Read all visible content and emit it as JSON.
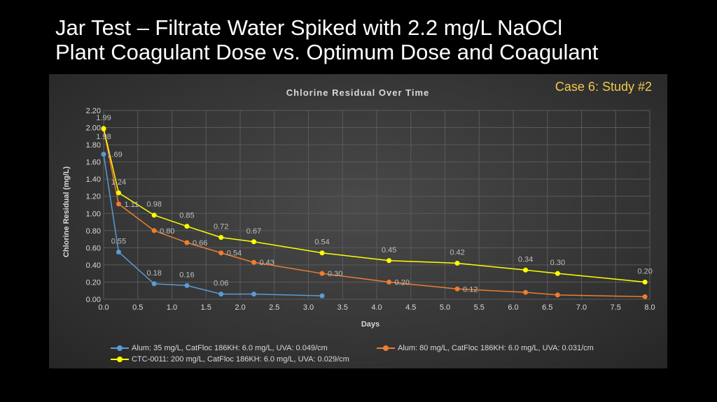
{
  "slide": {
    "title_line1": "Jar Test – Filtrate Water Spiked with 2.2 mg/L NaOCl",
    "title_line2": "Plant Coagulant Dose vs. Optimum Dose and Coagulant",
    "case_label": "Case 6:  Study #2"
  },
  "chart_data": {
    "type": "line",
    "title": "Chlorine Residual Over Time",
    "xlabel": "Days",
    "ylabel": "Chlorine Residual (mg/L)",
    "xlim": [
      0,
      8
    ],
    "ylim": [
      0,
      2.2
    ],
    "x_ticks": [
      "0.0",
      "0.5",
      "1.0",
      "1.5",
      "2.0",
      "2.5",
      "3.0",
      "3.5",
      "4.0",
      "4.5",
      "5.0",
      "5.5",
      "6.0",
      "6.5",
      "7.0",
      "7.5",
      "8.0"
    ],
    "y_ticks": [
      "0.00",
      "0.20",
      "0.40",
      "0.60",
      "0.80",
      "1.00",
      "1.20",
      "1.40",
      "1.60",
      "1.80",
      "2.00",
      "2.20"
    ],
    "grid": true,
    "legend_position": "bottom",
    "series": [
      {
        "name": "Alum: 35 mg/L, CatFloc 186KH: 6.0 mg/L, UVA: 0.049/cm",
        "color": "#5b9bd5",
        "x": [
          0.0,
          0.22,
          0.74,
          1.22,
          1.72,
          2.2,
          3.2
        ],
        "y": [
          1.69,
          0.55,
          0.18,
          0.16,
          0.06,
          0.06,
          0.04
        ],
        "labels": [
          "1.69",
          "0.55",
          "0.18",
          "0.16",
          "0.06",
          "",
          ""
        ]
      },
      {
        "name": "Alum: 80 mg/L, CatFloc 186KH: 6.0 mg/L, UVA: 0.031/cm",
        "color": "#ed7d31",
        "x": [
          0.0,
          0.22,
          0.74,
          1.22,
          1.72,
          2.2,
          3.2,
          4.18,
          5.18,
          6.18,
          6.65,
          7.93
        ],
        "y": [
          1.98,
          1.11,
          0.8,
          0.66,
          0.54,
          0.43,
          0.3,
          0.2,
          0.12,
          0.08,
          0.05,
          0.03
        ],
        "labels": [
          "1.98",
          "1.11",
          "0.80",
          "0.66",
          "0.54",
          "0.43",
          "0.30",
          "0.20",
          "0.12",
          "",
          "",
          ""
        ]
      },
      {
        "name": "CTC-0011: 200 mg/L, CatFloc 186KH: 6.0 mg/L, UVA: 0.029/cm",
        "color": "#ffff00",
        "x": [
          0.0,
          0.22,
          0.74,
          1.22,
          1.72,
          2.2,
          3.2,
          4.18,
          5.18,
          6.18,
          6.65,
          7.93
        ],
        "y": [
          1.99,
          1.24,
          0.98,
          0.85,
          0.72,
          0.67,
          0.54,
          0.45,
          0.42,
          0.34,
          0.3,
          0.2
        ],
        "labels": [
          "1.99",
          "1.24",
          "0.98",
          "0.85",
          "0.72",
          "0.67",
          "0.54",
          "0.45",
          "0.42",
          "0.34",
          "0.30",
          "0.20"
        ]
      }
    ]
  }
}
